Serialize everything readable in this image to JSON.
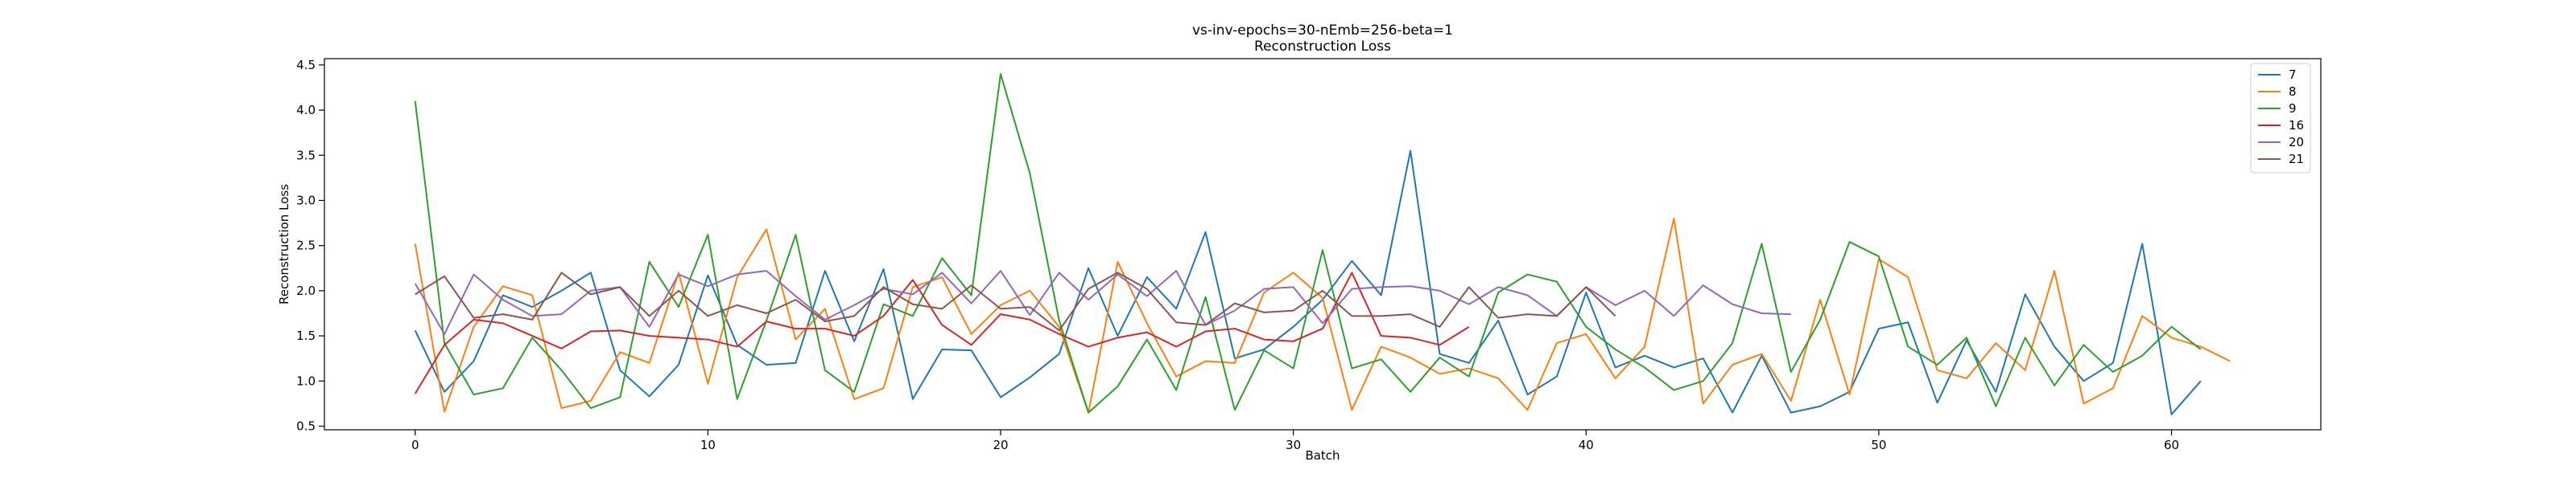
{
  "chart_data": {
    "type": "line",
    "title": "vs-inv-epochs=30-nEmb=256-beta=1",
    "subtitle": "Reconstruction Loss",
    "xlabel": "Batch",
    "ylabel": "Reconstruction Loss",
    "xlim": [
      -3.1,
      65.1
    ],
    "ylim": [
      0.46,
      4.57
    ],
    "xticks": [
      0,
      10,
      20,
      30,
      40,
      50,
      60
    ],
    "yticks": [
      0.5,
      1.0,
      1.5,
      2.0,
      2.5,
      3.0,
      3.5,
      4.0,
      4.5
    ],
    "legend_position": "top-right",
    "grid": false,
    "series": [
      {
        "name": "7",
        "color": "#1f77b4",
        "values": [
          1.56,
          0.88,
          1.22,
          1.95,
          1.82,
          2.0,
          2.2,
          1.12,
          0.83,
          1.18,
          2.17,
          1.4,
          1.18,
          1.2,
          2.22,
          1.44,
          2.24,
          0.8,
          1.35,
          1.34,
          0.82,
          1.04,
          1.3,
          2.25,
          1.5,
          2.15,
          1.8,
          2.65,
          1.25,
          1.35,
          1.6,
          1.9,
          2.33,
          1.95,
          3.55,
          1.3,
          1.2,
          1.67,
          0.85,
          1.05,
          1.98,
          1.15,
          1.28,
          1.15,
          1.25,
          0.65,
          1.28,
          0.65,
          0.72,
          0.88,
          1.58,
          1.65,
          0.76,
          1.45,
          0.88,
          1.96,
          1.38,
          1.0,
          1.2,
          2.52,
          0.63,
          1.0
        ]
      },
      {
        "name": "8",
        "color": "#ff7f0e",
        "values": [
          2.52,
          0.66,
          1.6,
          2.05,
          1.95,
          0.7,
          0.78,
          1.32,
          1.2,
          2.2,
          0.97,
          2.15,
          2.68,
          1.46,
          1.8,
          0.8,
          0.92,
          2.04,
          2.15,
          1.52,
          1.84,
          2.0,
          1.6,
          0.65,
          2.32,
          1.64,
          1.05,
          1.22,
          1.2,
          1.98,
          2.2,
          1.92,
          0.68,
          1.38,
          1.26,
          1.08,
          1.14,
          1.03,
          0.68,
          1.42,
          1.52,
          1.03,
          1.38,
          2.8,
          0.75,
          1.18,
          1.3,
          0.78,
          1.9,
          0.85,
          2.35,
          2.15,
          1.12,
          1.03,
          1.42,
          1.12,
          2.22,
          0.75,
          0.92,
          1.72,
          1.48,
          1.38,
          1.22
        ]
      },
      {
        "name": "9",
        "color": "#2ca02c",
        "values": [
          4.1,
          1.42,
          0.85,
          0.92,
          1.48,
          1.12,
          0.7,
          0.82,
          2.32,
          1.82,
          2.62,
          0.8,
          1.67,
          2.62,
          1.12,
          0.88,
          1.85,
          1.72,
          2.36,
          1.95,
          4.4,
          3.3,
          1.67,
          0.65,
          0.94,
          1.46,
          0.9,
          1.93,
          0.68,
          1.34,
          1.14,
          2.45,
          1.14,
          1.24,
          0.88,
          1.26,
          1.05,
          1.98,
          2.18,
          2.1,
          1.6,
          1.35,
          1.15,
          0.9,
          1.0,
          1.42,
          2.52,
          1.1,
          1.68,
          2.54,
          2.38,
          1.38,
          1.18,
          1.48,
          0.72,
          1.48,
          0.95,
          1.4,
          1.1,
          1.28,
          1.6,
          1.35
        ]
      },
      {
        "name": "16",
        "color": "#d62728",
        "values": [
          0.86,
          1.4,
          1.68,
          1.64,
          1.5,
          1.36,
          1.55,
          1.56,
          1.5,
          1.48,
          1.46,
          1.38,
          1.66,
          1.58,
          1.58,
          1.5,
          1.72,
          2.12,
          1.62,
          1.4,
          1.74,
          1.68,
          1.52,
          1.38,
          1.48,
          1.54,
          1.38,
          1.55,
          1.58,
          1.46,
          1.44,
          1.58,
          2.2,
          1.5,
          1.48,
          1.4,
          1.6
        ]
      },
      {
        "name": "20",
        "color": "#9467bd",
        "values": [
          2.08,
          1.52,
          2.18,
          1.9,
          1.72,
          1.74,
          2.0,
          2.04,
          1.6,
          2.18,
          2.05,
          2.18,
          2.22,
          1.94,
          1.68,
          1.84,
          2.02,
          1.96,
          2.2,
          1.86,
          2.22,
          1.73,
          2.2,
          1.9,
          2.18,
          1.94,
          2.22,
          1.62,
          1.78,
          2.02,
          2.04,
          1.64,
          2.02,
          2.04,
          2.05,
          2.0,
          1.85,
          2.04,
          1.95,
          1.72,
          2.04,
          1.84,
          2.0,
          1.72,
          2.06,
          1.85,
          1.75,
          1.74
        ]
      },
      {
        "name": "21",
        "color": "#8c564b",
        "values": [
          1.96,
          2.16,
          1.7,
          1.74,
          1.68,
          2.2,
          1.96,
          2.04,
          1.72,
          2.0,
          1.72,
          1.84,
          1.75,
          1.9,
          1.66,
          1.72,
          2.04,
          1.85,
          1.8,
          2.06,
          1.8,
          1.82,
          1.56,
          2.02,
          2.2,
          2.02,
          1.65,
          1.62,
          1.86,
          1.76,
          1.78,
          2.0,
          1.72,
          1.72,
          1.74,
          1.6,
          2.04,
          1.7,
          1.74,
          1.72,
          2.04,
          1.72
        ]
      }
    ]
  }
}
